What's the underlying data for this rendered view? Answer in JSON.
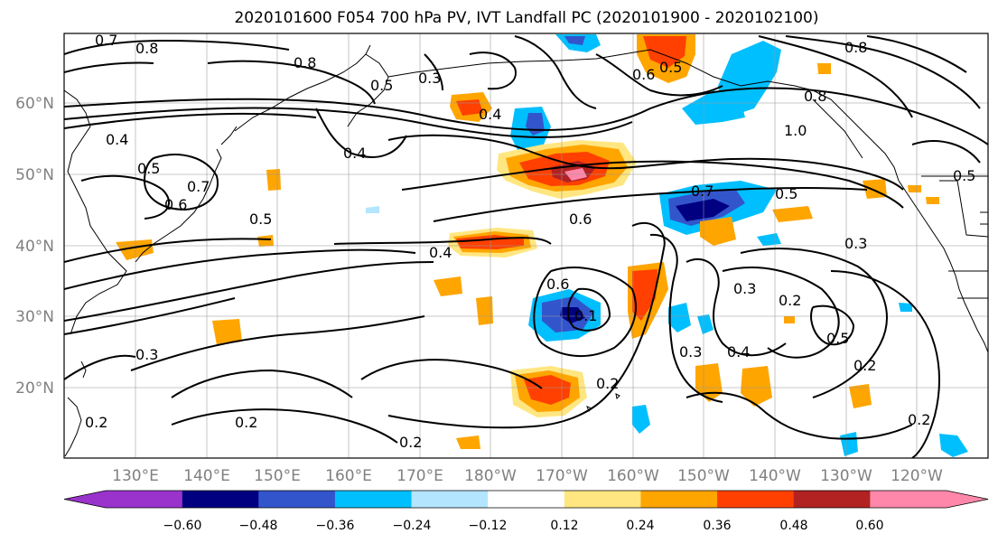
{
  "title": "2020101600 F054 700 hPa PV, IVT Landfall PC (2020101900 - 2020102100)",
  "lat_labels": [
    "60°N",
    "50°N",
    "40°N",
    "30°N",
    "20°N"
  ],
  "lon_labels": [
    "130°E",
    "140°E",
    "150°E",
    "160°E",
    "170°E",
    "180°W",
    "170°W",
    "160°W",
    "150°W",
    "140°W",
    "130°W",
    "120°W"
  ],
  "colorbar": {
    "ticks": [
      "−0.60",
      "−0.48",
      "−0.36",
      "−0.24",
      "−0.12",
      "0.12",
      "0.24",
      "0.36",
      "0.48",
      "0.60"
    ],
    "colors": [
      "#9933cc",
      "#000080",
      "#3355cc",
      "#00bfff",
      "#b3e5ff",
      "#ffffff",
      "#ffe680",
      "#ffa500",
      "#ff4000",
      "#b22222",
      "#ff88aa"
    ]
  },
  "contour_labels": [
    "0.7",
    "0.8",
    "0.8",
    "0.5",
    "0.3",
    "0.5",
    "0.6",
    "0.8",
    "0.4",
    "0.4",
    "0.5",
    "0.6",
    "0.7",
    "0.5",
    "0.6",
    "0.4",
    "0.4",
    "0.7",
    "0.5",
    "0.8",
    "1.0",
    "0.5",
    "0.6",
    "0.1",
    "0.3",
    "0.3",
    "0.3",
    "0.2",
    "0.2",
    "0.2",
    "0.3",
    "0.4",
    "0.5",
    "0.2",
    "0.2",
    "0.2",
    "0.2"
  ],
  "filled_regions": {
    "blue_shades": [
      "#00bfff",
      "#3355cc",
      "#000080"
    ],
    "warm_shades": [
      "#ffe680",
      "#ffa500",
      "#ff4000",
      "#b22222",
      "#ff88aa"
    ]
  }
}
